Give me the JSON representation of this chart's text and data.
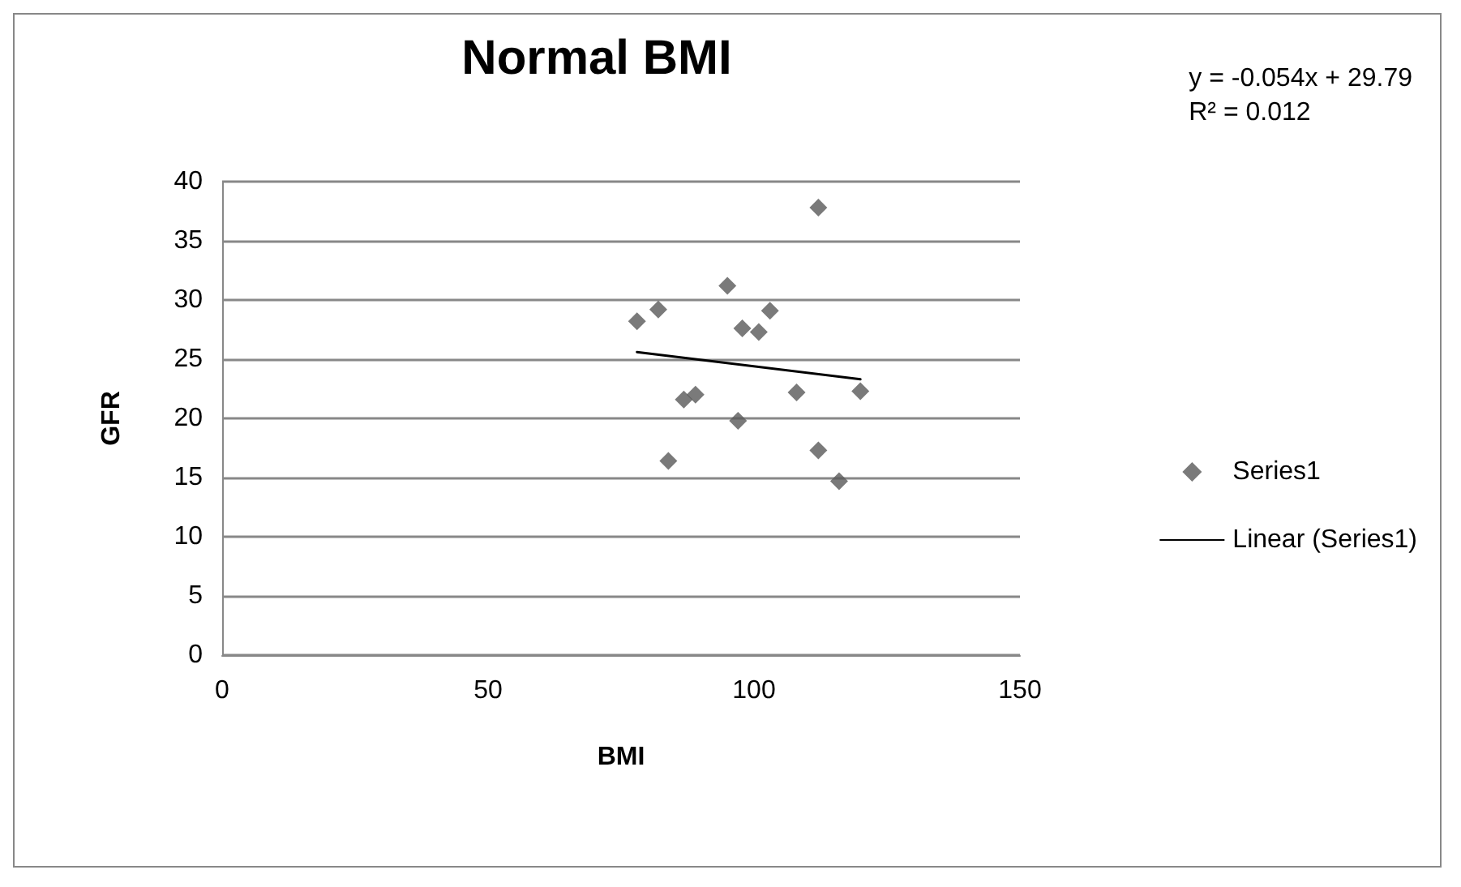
{
  "chart_data": {
    "type": "scatter",
    "title": "Normal BMI",
    "xlabel": "BMI",
    "ylabel": "GFR",
    "xlim": [
      0,
      150
    ],
    "xticks": [
      0,
      50,
      100,
      150
    ],
    "ylim": [
      0,
      40
    ],
    "yticks": [
      0,
      5,
      10,
      15,
      20,
      25,
      30,
      35,
      40
    ],
    "grid": "y",
    "legend": "right",
    "marker": "diamond",
    "annotations": [
      "y = -0.054x + 29.79\nR² = 0.012"
    ],
    "series": [
      {
        "name": "Series1",
        "color": "#595959",
        "x": [
          112.1,
          95.0,
          82.0,
          78.0,
          103.0,
          97.8,
          100.9,
          86.8,
          89.0,
          108.0,
          120.0,
          97.0,
          83.9,
          112.1,
          116.0
        ],
        "values": [
          37.8,
          31.2,
          29.2,
          28.2,
          29.1,
          27.6,
          27.3,
          21.6,
          22.0,
          22.2,
          22.3,
          19.8,
          16.4,
          17.3,
          14.7
        ]
      },
      {
        "name": "Linear (Series1)",
        "type": "line",
        "color": "#000000",
        "marker": "none",
        "line_style": "solid",
        "x": [
          78,
          120
        ],
        "values": [
          25.6,
          23.3
        ]
      }
    ]
  }
}
